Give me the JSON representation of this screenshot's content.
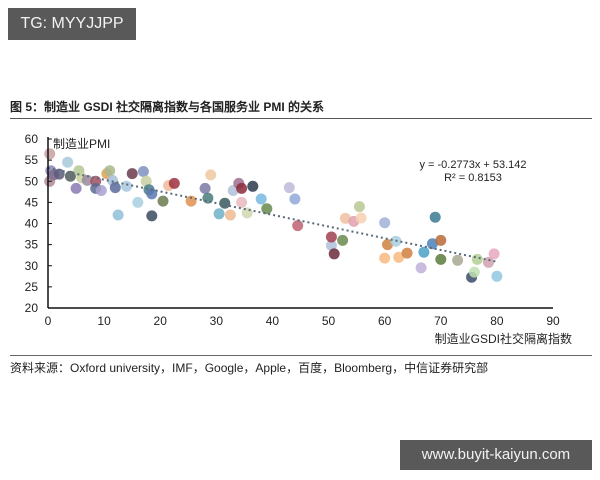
{
  "watermark_top": "TG: MYYJJPP",
  "watermark_bottom": "www.buyit-kaiyun.com",
  "figure_title": "图 5：制造业 GSDI 社交隔离指数与各国服务业 PMI 的关系",
  "source": "资料来源：Oxford university，IMF，Google，Apple，百度，Bloomberg，中信证券研究部",
  "chart_data": {
    "type": "scatter",
    "title": "图 5：制造业 GSDI 社交隔离指数与各国服务业 PMI 的关系",
    "xlabel": "制造业GSDI社交隔离指数",
    "ylabel": "制造业PMI",
    "xlim": [
      0,
      90
    ],
    "ylim": [
      20,
      60
    ],
    "xticks": [
      0,
      10,
      20,
      30,
      40,
      50,
      60,
      70,
      80,
      90
    ],
    "yticks": [
      20,
      25,
      30,
      35,
      40,
      45,
      50,
      55,
      60
    ],
    "grid": false,
    "legend": "none",
    "trendline": {
      "type": "linear",
      "style": "dotted",
      "slope": -0.2773,
      "intercept": 53.142,
      "equation": "y = -0.2773x + 53.142",
      "r_squared": "R² = 0.8153"
    },
    "points": [
      {
        "x": 0.3,
        "y": 56.5,
        "color": "#c9a0a0"
      },
      {
        "x": 0.5,
        "y": 52.5,
        "color": "#8a87b8"
      },
      {
        "x": 0.3,
        "y": 50.0,
        "color": "#b08a9a"
      },
      {
        "x": 1.0,
        "y": 51.5,
        "color": "#7d6b8e"
      },
      {
        "x": 2.0,
        "y": 51.7,
        "color": "#5a5a78"
      },
      {
        "x": 3.5,
        "y": 54.5,
        "color": "#a8c8dc"
      },
      {
        "x": 4.0,
        "y": 51.2,
        "color": "#505a5a"
      },
      {
        "x": 5.0,
        "y": 48.3,
        "color": "#8a7ab4"
      },
      {
        "x": 5.5,
        "y": 52.5,
        "color": "#b4c894"
      },
      {
        "x": 6.0,
        "y": 50.8,
        "color": "#c8d0a0"
      },
      {
        "x": 7.0,
        "y": 50.2,
        "color": "#9a8aa0"
      },
      {
        "x": 8.5,
        "y": 50.0,
        "color": "#a05060"
      },
      {
        "x": 8.5,
        "y": 48.3,
        "color": "#5a6a90"
      },
      {
        "x": 9.5,
        "y": 47.8,
        "color": "#a8a0d0"
      },
      {
        "x": 10.5,
        "y": 51.8,
        "color": "#e0a050"
      },
      {
        "x": 11.0,
        "y": 52.5,
        "color": "#a8b890"
      },
      {
        "x": 11.5,
        "y": 50.2,
        "color": "#a8c0d8"
      },
      {
        "x": 12.0,
        "y": 48.5,
        "color": "#5a6a9a"
      },
      {
        "x": 12.5,
        "y": 42.0,
        "color": "#90c0d8"
      },
      {
        "x": 14.0,
        "y": 48.8,
        "color": "#a8c8e0"
      },
      {
        "x": 15.0,
        "y": 51.8,
        "color": "#6a3a4a"
      },
      {
        "x": 16.0,
        "y": 45.0,
        "color": "#a8d0e0"
      },
      {
        "x": 17.0,
        "y": 52.3,
        "color": "#8090c0"
      },
      {
        "x": 17.5,
        "y": 50.0,
        "color": "#c8d0a0"
      },
      {
        "x": 18.0,
        "y": 48.0,
        "color": "#4a7a8a"
      },
      {
        "x": 18.5,
        "y": 47.0,
        "color": "#5a7ab0"
      },
      {
        "x": 18.5,
        "y": 41.8,
        "color": "#3a4a60"
      },
      {
        "x": 20.5,
        "y": 45.3,
        "color": "#6a7a50"
      },
      {
        "x": 21.5,
        "y": 49.0,
        "color": "#f0b898"
      },
      {
        "x": 22.5,
        "y": 49.5,
        "color": "#a03040"
      },
      {
        "x": 25.5,
        "y": 45.3,
        "color": "#e09050"
      },
      {
        "x": 28.0,
        "y": 48.3,
        "color": "#7a7aa8"
      },
      {
        "x": 28.5,
        "y": 46.0,
        "color": "#4a7a7a"
      },
      {
        "x": 29.0,
        "y": 51.5,
        "color": "#f0c8a0"
      },
      {
        "x": 30.5,
        "y": 42.3,
        "color": "#70b0c8"
      },
      {
        "x": 31.5,
        "y": 44.8,
        "color": "#3a5a60"
      },
      {
        "x": 32.5,
        "y": 42.0,
        "color": "#f0b890"
      },
      {
        "x": 33.0,
        "y": 47.8,
        "color": "#b0c0d8"
      },
      {
        "x": 34.0,
        "y": 49.5,
        "color": "#a07090"
      },
      {
        "x": 34.5,
        "y": 48.3,
        "color": "#8a2a3a"
      },
      {
        "x": 34.5,
        "y": 45.0,
        "color": "#e8b8c0"
      },
      {
        "x": 35.5,
        "y": 42.5,
        "color": "#d0d8b0"
      },
      {
        "x": 36.5,
        "y": 48.8,
        "color": "#2a3a4a"
      },
      {
        "x": 38.0,
        "y": 45.8,
        "color": "#78b8e0"
      },
      {
        "x": 39.0,
        "y": 43.5,
        "color": "#6a8a50"
      },
      {
        "x": 43.0,
        "y": 48.5,
        "color": "#c0b8d8"
      },
      {
        "x": 44.0,
        "y": 45.8,
        "color": "#90a8d8"
      },
      {
        "x": 44.5,
        "y": 39.5,
        "color": "#c06070"
      },
      {
        "x": 50.5,
        "y": 34.8,
        "color": "#b0c0d8"
      },
      {
        "x": 50.5,
        "y": 36.8,
        "color": "#a04050"
      },
      {
        "x": 51.0,
        "y": 32.8,
        "color": "#6a2a3a"
      },
      {
        "x": 52.5,
        "y": 36.0,
        "color": "#6a8a50"
      },
      {
        "x": 53.0,
        "y": 41.2,
        "color": "#f0c0a0"
      },
      {
        "x": 54.5,
        "y": 40.5,
        "color": "#e0a0b0"
      },
      {
        "x": 55.5,
        "y": 44.0,
        "color": "#b8c890"
      },
      {
        "x": 55.8,
        "y": 41.3,
        "color": "#f8d0b0"
      },
      {
        "x": 60.0,
        "y": 40.2,
        "color": "#a0b0d8"
      },
      {
        "x": 60.0,
        "y": 31.8,
        "color": "#f8b880"
      },
      {
        "x": 60.5,
        "y": 35.0,
        "color": "#d08040"
      },
      {
        "x": 62.0,
        "y": 35.8,
        "color": "#a8d0e0"
      },
      {
        "x": 62.5,
        "y": 32.0,
        "color": "#f8b880"
      },
      {
        "x": 64.0,
        "y": 33.0,
        "color": "#d08040"
      },
      {
        "x": 66.5,
        "y": 29.5,
        "color": "#c0b0d8"
      },
      {
        "x": 67.0,
        "y": 33.2,
        "color": "#4aa0c8"
      },
      {
        "x": 68.5,
        "y": 35.2,
        "color": "#4a80b8"
      },
      {
        "x": 69.0,
        "y": 41.5,
        "color": "#3a7a90"
      },
      {
        "x": 70.0,
        "y": 36.0,
        "color": "#b86a3a"
      },
      {
        "x": 70.0,
        "y": 31.5,
        "color": "#5a7a3a"
      },
      {
        "x": 73.0,
        "y": 31.3,
        "color": "#a8a890"
      },
      {
        "x": 75.5,
        "y": 27.3,
        "color": "#3a4a6a"
      },
      {
        "x": 76.0,
        "y": 28.5,
        "color": "#c0e0b0"
      },
      {
        "x": 76.5,
        "y": 31.5,
        "color": "#b0d090"
      },
      {
        "x": 78.5,
        "y": 30.8,
        "color": "#d0a0b0"
      },
      {
        "x": 79.5,
        "y": 32.8,
        "color": "#e8a8c0"
      },
      {
        "x": 80.0,
        "y": 27.5,
        "color": "#90c8e0"
      }
    ]
  }
}
